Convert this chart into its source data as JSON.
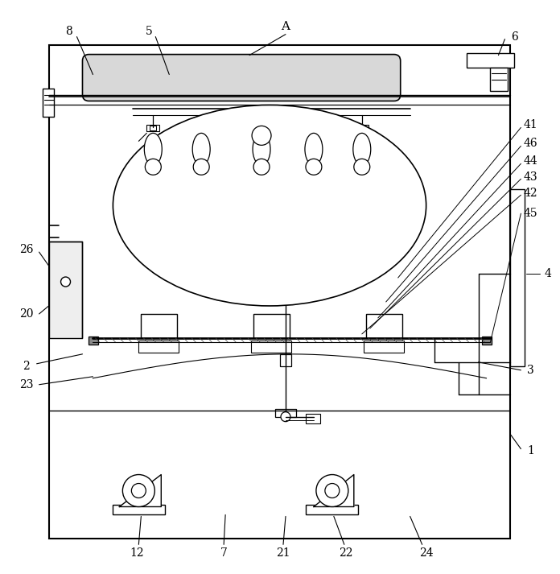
{
  "bg_color": "#ffffff",
  "line_color": "#000000",
  "fig_width": 6.96,
  "fig_height": 7.13
}
